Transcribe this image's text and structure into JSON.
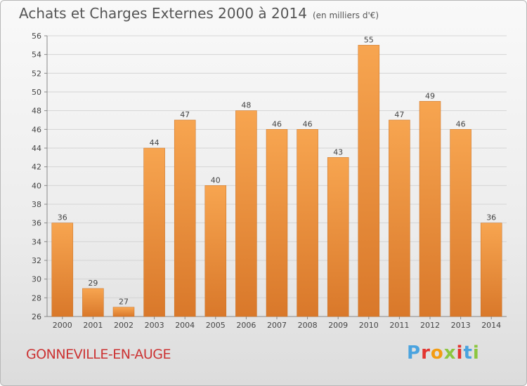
{
  "header": {
    "title": "Achats et Charges Externes 2000 à 2014",
    "unit": "(en milliers d'€)"
  },
  "footer": {
    "commune": "GONNEVILLE-EN-AUGE",
    "logo_text": "Proxiti",
    "logo_colors": [
      "#4aa3df",
      "#e3342f",
      "#f39c12",
      "#8cc63f",
      "#e3342f",
      "#4aa3df",
      "#8cc63f"
    ]
  },
  "chart_data": {
    "type": "bar",
    "title": "Achats et Charges Externes 2000 à 2014",
    "subtitle": "(en milliers d'€)",
    "xlabel": "",
    "ylabel": "",
    "categories": [
      "2000",
      "2001",
      "2002",
      "2003",
      "2004",
      "2005",
      "2006",
      "2007",
      "2008",
      "2009",
      "2010",
      "2011",
      "2012",
      "2013",
      "2014"
    ],
    "values": [
      36,
      29,
      27,
      44,
      47,
      40,
      48,
      46,
      46,
      43,
      55,
      47,
      49,
      46,
      36
    ],
    "ylim": [
      26,
      56
    ],
    "yticks": [
      26,
      28,
      30,
      32,
      34,
      36,
      38,
      40,
      42,
      44,
      46,
      48,
      50,
      52,
      54,
      56
    ],
    "grid": true,
    "bar_color_top": "#f7a550",
    "bar_color_bottom": "#d9782a"
  }
}
